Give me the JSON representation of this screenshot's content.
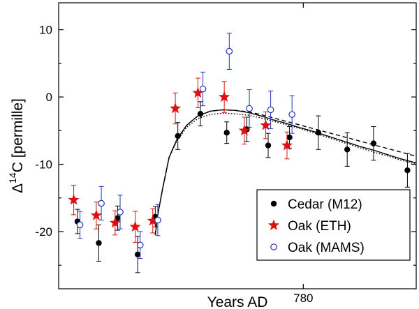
{
  "chart_data": {
    "type": "scatter",
    "xlabel": "Years AD",
    "ylabel": "Δ14C [permille]",
    "ylabel_parts": {
      "delta": "Δ",
      "superscript": "14",
      "rest": "C [permille]"
    },
    "xlim": [
      760.5,
      789.0
    ],
    "ylim": [
      -28.5,
      14.0
    ],
    "xticks": [
      780
    ],
    "yticks": [
      10,
      0,
      -10,
      -20
    ],
    "grid": false,
    "legend_position": "bottom-right",
    "series": [
      {
        "name": "Cedar (M12)",
        "marker": "filled-circle",
        "color": "#000000",
        "points": [
          {
            "x": 762.0,
            "y": -18.5,
            "err": 1.8
          },
          {
            "x": 763.7,
            "y": -21.7,
            "err": 2.7
          },
          {
            "x": 765.2,
            "y": -18.0,
            "err": 1.8
          },
          {
            "x": 766.8,
            "y": -23.4,
            "err": 2.7
          },
          {
            "x": 768.2,
            "y": -17.8,
            "err": 1.5
          },
          {
            "x": 770.0,
            "y": -5.8,
            "err": 2.0
          },
          {
            "x": 771.8,
            "y": -2.5,
            "err": 1.8
          },
          {
            "x": 773.9,
            "y": -5.3,
            "err": 1.6
          },
          {
            "x": 775.5,
            "y": -4.8,
            "err": 1.8
          },
          {
            "x": 777.2,
            "y": -7.2,
            "err": 1.8
          },
          {
            "x": 778.9,
            "y": -6.0,
            "err": 1.6
          },
          {
            "x": 781.2,
            "y": -5.3,
            "err": 2.5
          },
          {
            "x": 783.5,
            "y": -7.8,
            "err": 2.5
          },
          {
            "x": 785.6,
            "y": -6.9,
            "err": 2.5
          },
          {
            "x": 788.3,
            "y": -10.9,
            "err": 2.5
          }
        ]
      },
      {
        "name": "Oak (ETH)",
        "marker": "star",
        "color": "#dd1111",
        "points": [
          {
            "x": 761.7,
            "y": -15.3,
            "err": 2.2
          },
          {
            "x": 763.5,
            "y": -17.6,
            "err": 2.0
          },
          {
            "x": 765.0,
            "y": -18.7,
            "err": 1.8
          },
          {
            "x": 766.6,
            "y": -19.3,
            "err": 2.3
          },
          {
            "x": 768.0,
            "y": -18.4,
            "err": 1.8
          },
          {
            "x": 769.8,
            "y": -1.7,
            "err": 2.3
          },
          {
            "x": 771.6,
            "y": 0.6,
            "err": 2.2
          },
          {
            "x": 773.7,
            "y": 0.0,
            "err": 2.3
          },
          {
            "x": 775.3,
            "y": -5.0,
            "err": 2.0
          },
          {
            "x": 777.0,
            "y": -4.2,
            "err": 2.0
          },
          {
            "x": 778.7,
            "y": -7.2,
            "err": 2.0
          }
        ]
      },
      {
        "name": "Oak (MAMS)",
        "marker": "open-circle",
        "color": "#2233bb",
        "points": [
          {
            "x": 762.2,
            "y": -19.0,
            "err": 2.0
          },
          {
            "x": 763.9,
            "y": -15.8,
            "err": 2.5
          },
          {
            "x": 765.4,
            "y": -17.1,
            "err": 2.5
          },
          {
            "x": 767.0,
            "y": -22.0,
            "err": 2.0
          },
          {
            "x": 768.4,
            "y": -18.3,
            "err": 2.3
          },
          {
            "x": 772.0,
            "y": 1.2,
            "err": 2.5
          },
          {
            "x": 774.1,
            "y": 6.8,
            "err": 2.7
          },
          {
            "x": 775.7,
            "y": -1.7,
            "err": 2.8
          },
          {
            "x": 777.4,
            "y": -1.9,
            "err": 2.8
          },
          {
            "x": 779.1,
            "y": -2.6,
            "err": 2.8
          }
        ]
      }
    ],
    "model_curves": [
      {
        "style": "solid",
        "points": [
          [
            768.2,
            -20.5
          ],
          [
            768.4,
            -17.5
          ],
          [
            768.8,
            -13.5
          ],
          [
            769.3,
            -9.0
          ],
          [
            769.9,
            -6.4
          ],
          [
            770.7,
            -4.2
          ],
          [
            771.6,
            -2.8
          ],
          [
            772.6,
            -2.1
          ],
          [
            773.6,
            -1.9
          ],
          [
            774.6,
            -2.0
          ],
          [
            775.6,
            -2.3
          ],
          [
            776.6,
            -2.8
          ],
          [
            777.6,
            -3.4
          ],
          [
            778.6,
            -3.9
          ],
          [
            779.6,
            -4.5
          ],
          [
            780.6,
            -5.0
          ],
          [
            781.6,
            -5.6
          ],
          [
            782.6,
            -6.2
          ],
          [
            783.6,
            -6.8
          ],
          [
            784.6,
            -7.4
          ],
          [
            785.6,
            -7.9
          ],
          [
            786.6,
            -8.5
          ],
          [
            787.6,
            -9.1
          ],
          [
            788.6,
            -9.6
          ],
          [
            789.0,
            -9.8
          ]
        ]
      },
      {
        "style": "dashed",
        "points": [
          [
            768.2,
            -20.5
          ],
          [
            768.4,
            -17.5
          ],
          [
            768.8,
            -13.5
          ],
          [
            769.3,
            -9.0
          ],
          [
            769.9,
            -6.4
          ],
          [
            770.7,
            -4.2
          ],
          [
            771.6,
            -2.8
          ],
          [
            772.6,
            -2.1
          ],
          [
            773.6,
            -1.9
          ],
          [
            774.6,
            -2.0
          ],
          [
            775.6,
            -2.2
          ],
          [
            776.6,
            -2.6
          ],
          [
            777.6,
            -3.1
          ],
          [
            778.6,
            -3.6
          ],
          [
            779.6,
            -4.1
          ],
          [
            780.6,
            -4.6
          ],
          [
            781.6,
            -5.1
          ],
          [
            782.6,
            -5.6
          ],
          [
            783.6,
            -6.1
          ],
          [
            784.6,
            -6.6
          ],
          [
            785.6,
            -7.1
          ],
          [
            786.6,
            -7.6
          ],
          [
            787.6,
            -8.1
          ],
          [
            788.6,
            -8.6
          ],
          [
            789.0,
            -8.8
          ]
        ]
      },
      {
        "style": "dotted",
        "points": [
          [
            768.2,
            -20.5
          ],
          [
            768.4,
            -17.5
          ],
          [
            768.8,
            -13.5
          ],
          [
            769.3,
            -9.0
          ],
          [
            769.9,
            -6.6
          ],
          [
            770.7,
            -4.5
          ],
          [
            771.6,
            -3.2
          ],
          [
            772.6,
            -2.6
          ],
          [
            773.6,
            -2.4
          ],
          [
            774.6,
            -2.5
          ],
          [
            775.6,
            -2.7
          ],
          [
            776.6,
            -3.1
          ],
          [
            777.6,
            -3.6
          ],
          [
            778.6,
            -4.1
          ],
          [
            779.6,
            -4.6
          ],
          [
            780.6,
            -5.2
          ],
          [
            781.6,
            -5.8
          ],
          [
            782.6,
            -6.4
          ],
          [
            783.6,
            -7.0
          ],
          [
            784.6,
            -7.6
          ],
          [
            785.6,
            -8.2
          ],
          [
            786.6,
            -8.7
          ],
          [
            787.6,
            -9.3
          ],
          [
            788.6,
            -9.8
          ],
          [
            789.0,
            -10.0
          ]
        ]
      }
    ]
  }
}
